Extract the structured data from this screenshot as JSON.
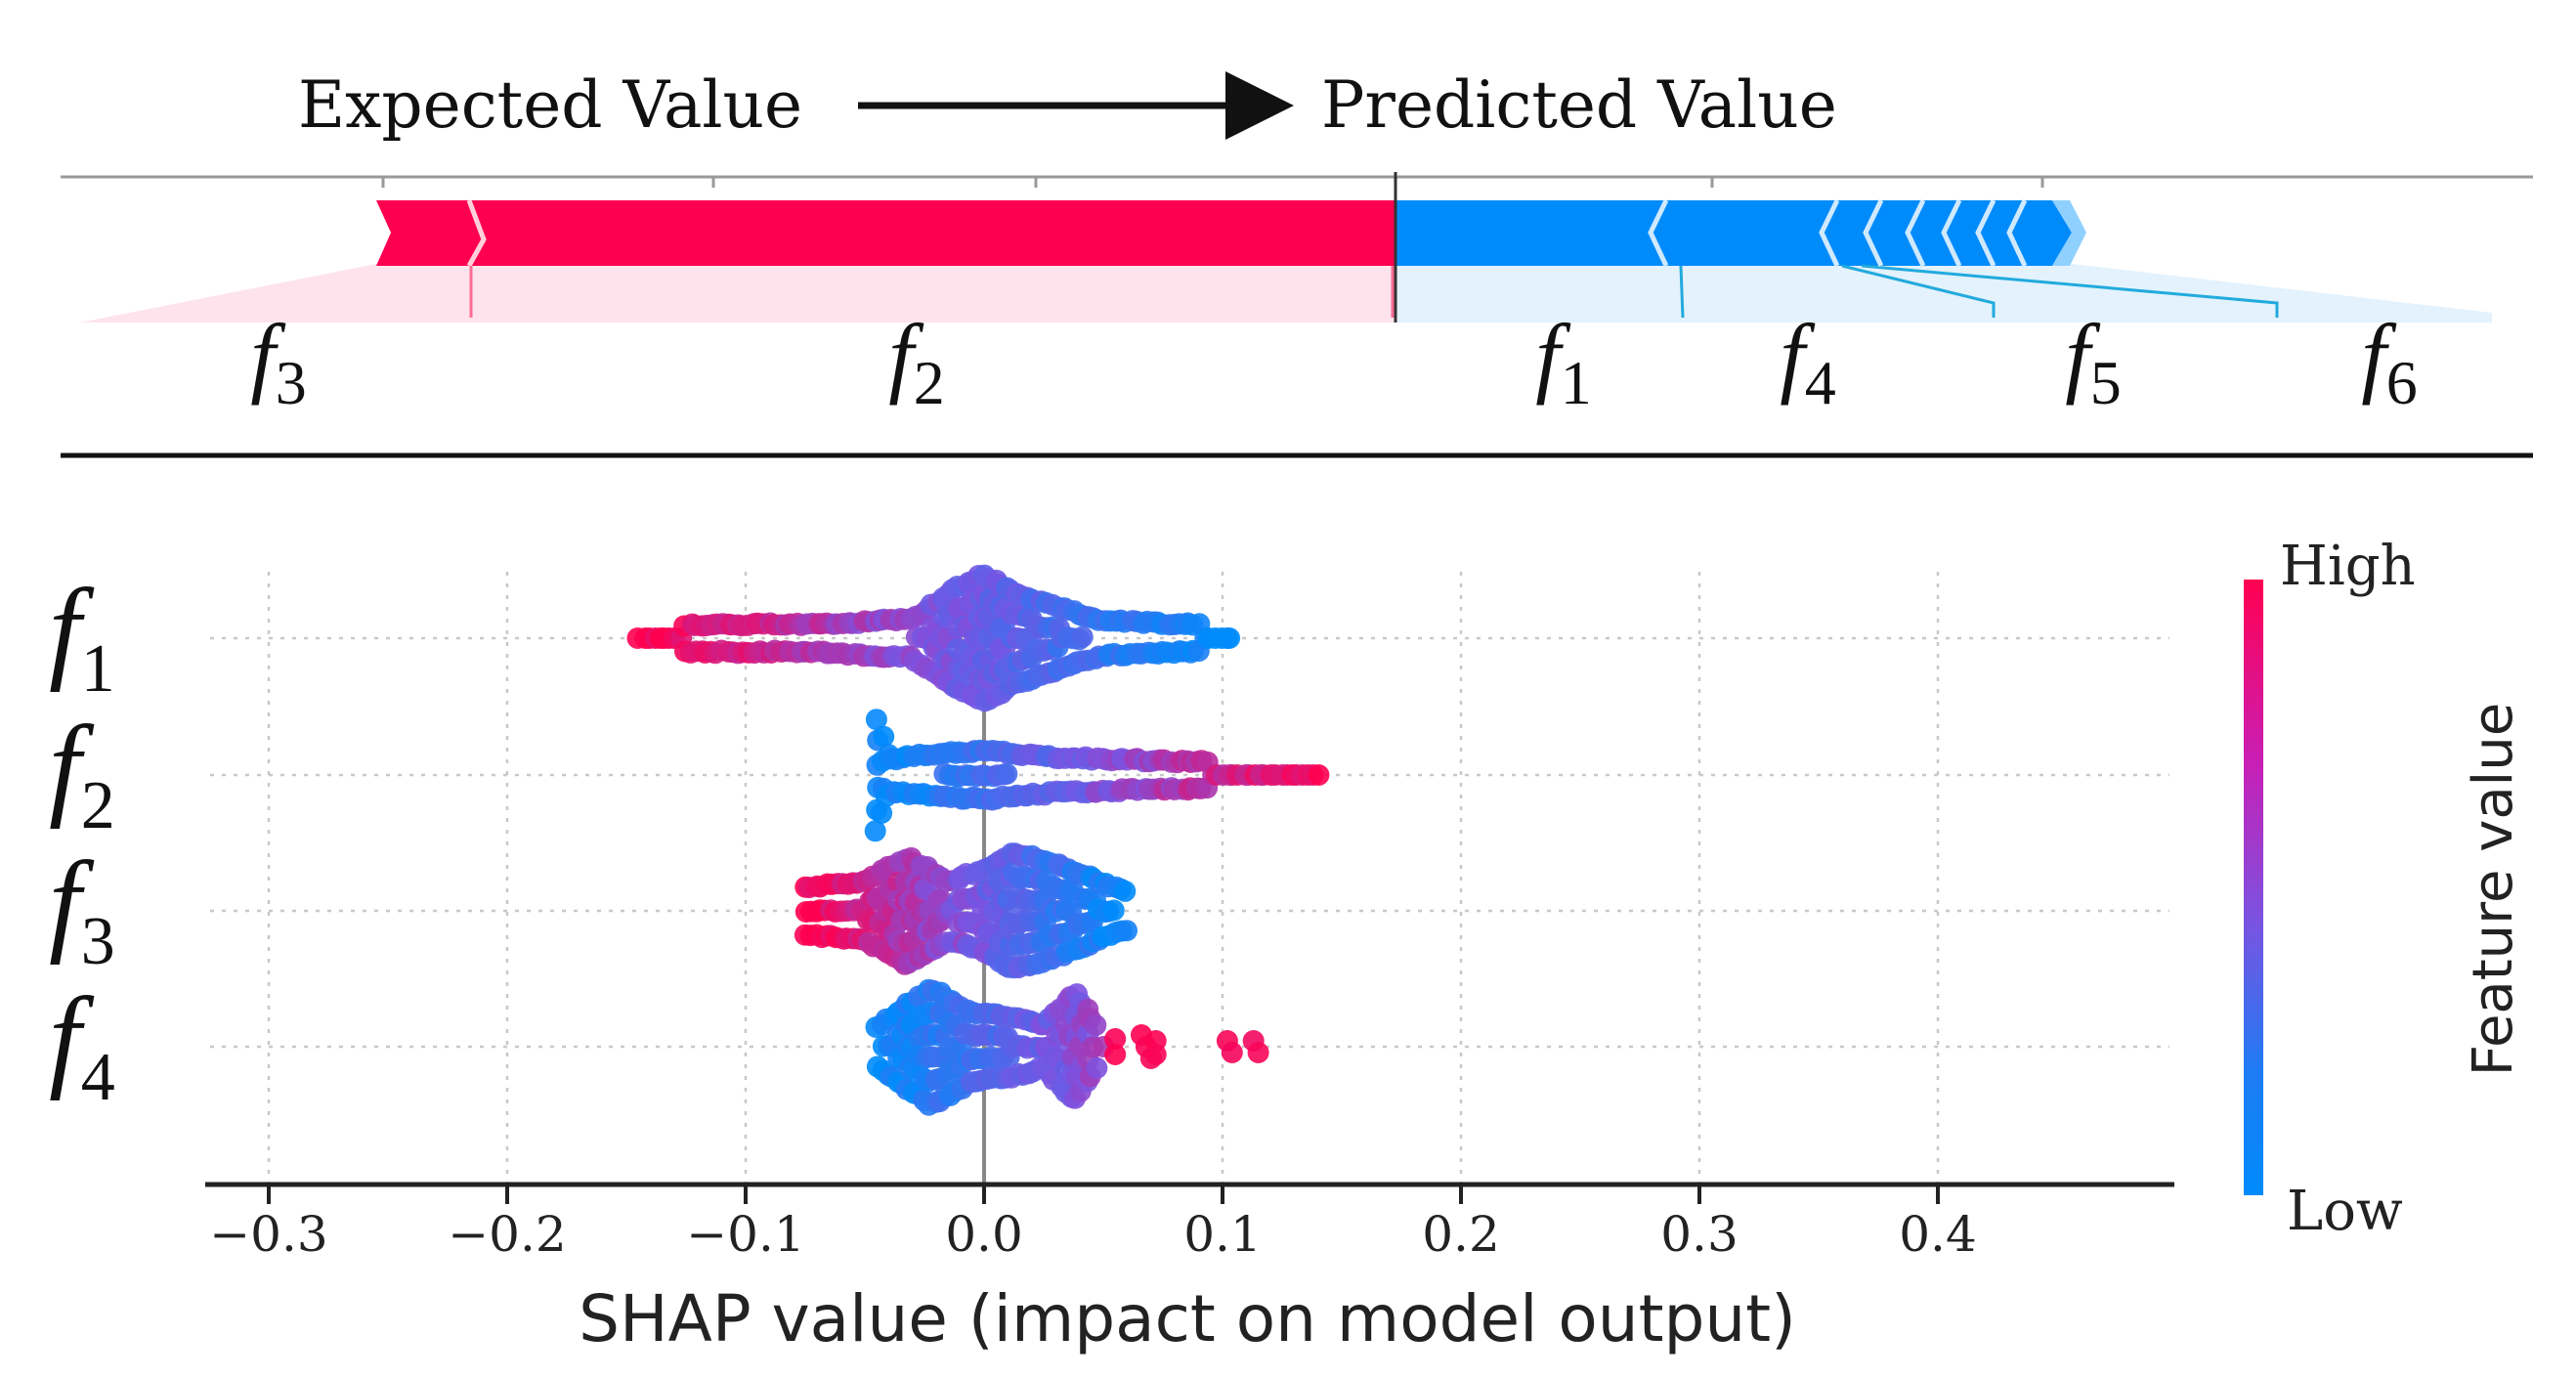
{
  "force_plot": {
    "expected_label": "Expected Value",
    "predicted_label": "Predicted Value",
    "labels": [
      {
        "name": "f",
        "sub": "3",
        "side": "positive"
      },
      {
        "name": "f",
        "sub": "2",
        "side": "positive"
      },
      {
        "name": "f",
        "sub": "1",
        "side": "negative"
      },
      {
        "name": "f",
        "sub": "4",
        "side": "negative"
      },
      {
        "name": "f",
        "sub": "5",
        "side": "negative"
      },
      {
        "name": "f",
        "sub": "6",
        "side": "negative"
      }
    ],
    "positive_color": "#ff0051",
    "negative_color": "#008bfb"
  },
  "chart_data": {
    "type": "scatter",
    "subtype": "shap-beeswarm",
    "xlabel": "SHAP value (impact on model output)",
    "xlim": [
      -0.33,
      0.5
    ],
    "xticks": [
      -0.3,
      -0.2,
      -0.1,
      0.0,
      0.1,
      0.2,
      0.3,
      0.4
    ],
    "xtick_labels": [
      "−0.3",
      "−0.2",
      "−0.1",
      "0.0",
      "0.1",
      "0.2",
      "0.3",
      "0.4"
    ],
    "grid": true,
    "features": [
      {
        "name": "f",
        "sub": "1",
        "min": -0.145,
        "max": 0.105,
        "trend": "high-left"
      },
      {
        "name": "f",
        "sub": "2",
        "min": -0.045,
        "max": 0.14,
        "trend": "high-right"
      },
      {
        "name": "f",
        "sub": "3",
        "min": -0.075,
        "max": 0.06,
        "trend": "high-left"
      },
      {
        "name": "f",
        "sub": "4",
        "min": -0.045,
        "max": 0.115,
        "trend": "high-right"
      }
    ],
    "colorbar": {
      "label": "Feature value",
      "high": "High",
      "low": "Low",
      "high_color": "#ff0051",
      "mid_color": "#7c52e0",
      "low_color": "#008bfb"
    }
  }
}
